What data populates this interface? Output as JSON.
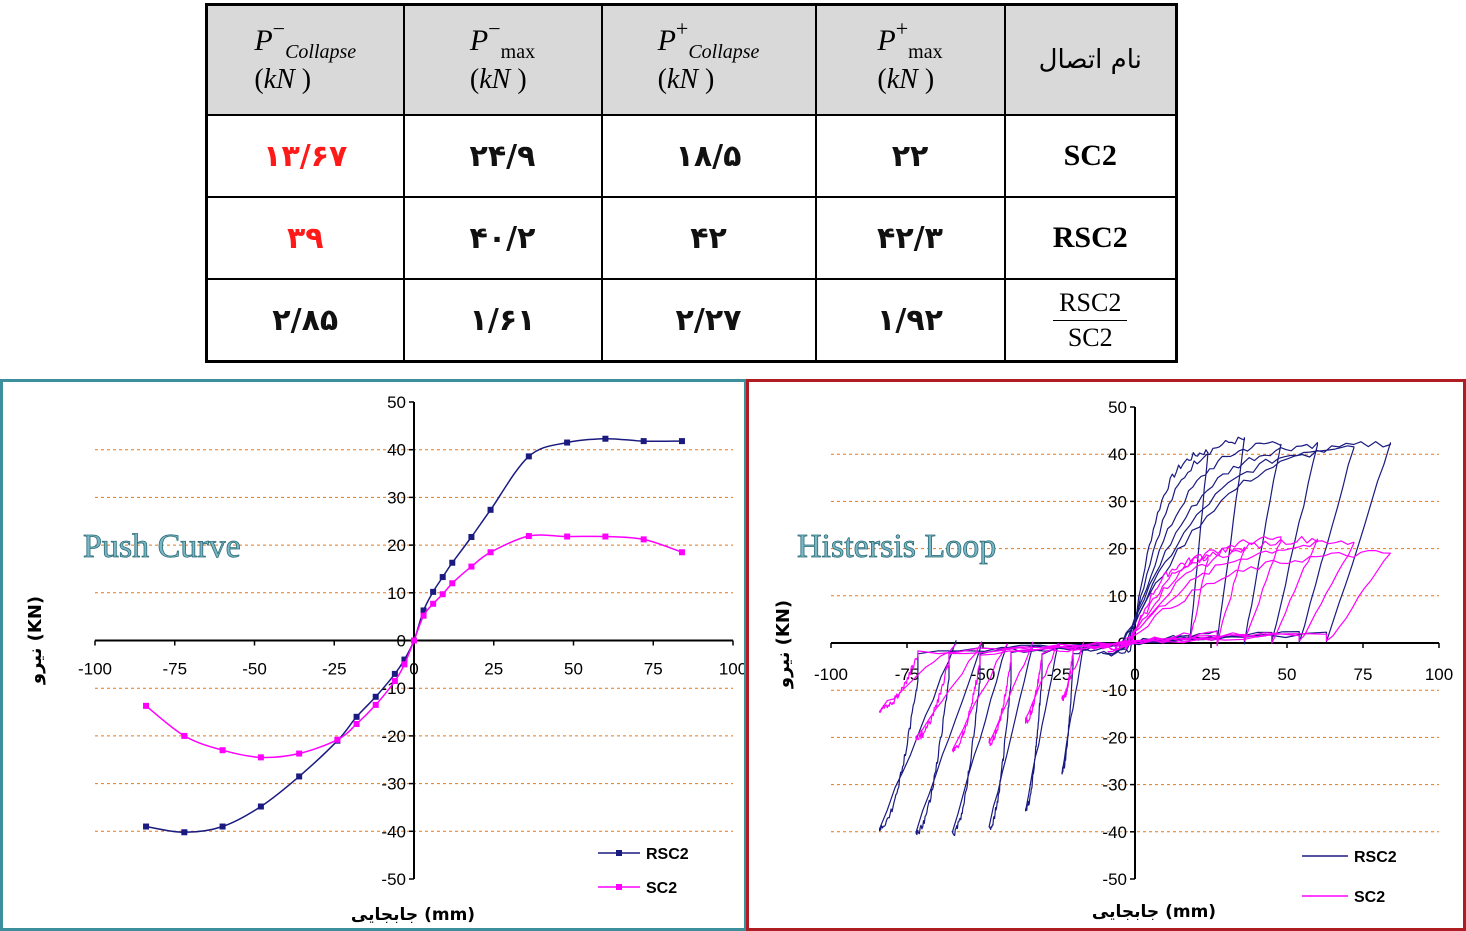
{
  "table": {
    "headers": [
      {
        "sym": "P",
        "sup": "−",
        "sub": "Collapse",
        "sub_italic": true,
        "unit_open": "(",
        "unit": "kN",
        "unit_close": " )"
      },
      {
        "sym": "P",
        "sup": "−",
        "sub": "max",
        "sub_italic": false,
        "unit_open": "(",
        "unit": "kN",
        "unit_close": " )"
      },
      {
        "sym": "P",
        "sup": "+",
        "sub": "Collapse",
        "sub_italic": true,
        "unit_open": "(",
        "unit": "kN",
        "unit_close": " )"
      },
      {
        "sym": "P",
        "sup": "+",
        "sub": "max",
        "sub_italic": false,
        "unit_open": "(",
        "unit": "kN",
        "unit_close": " )"
      }
    ],
    "name_header": "نام اتصال",
    "rows": [
      {
        "values": [
          "۱۳/۶۷",
          "۲۴/۹",
          "۱۸/۵",
          "۲۲"
        ],
        "name": "SC2"
      },
      {
        "values": [
          "۳۹",
          "۴۰/۲",
          "۴۲",
          "۴۲/۳"
        ],
        "name": "RSC2"
      },
      {
        "values": [
          "۲/۸۵",
          "۱/۶۱",
          "۲/۲۷",
          "۱/۹۲"
        ],
        "name_num": "RSC2",
        "name_den": "SC2"
      }
    ],
    "red_color": "#ff1a1a"
  },
  "chart_data": [
    {
      "type": "line",
      "title": "Push Curve",
      "xlabel": "جابجایی (mm)",
      "ylabel": "نیرو (KN)",
      "xlim": [
        -100,
        100
      ],
      "ylim": [
        -50,
        50
      ],
      "xticks": [
        -100,
        -75,
        -50,
        -25,
        0,
        25,
        50,
        75,
        100
      ],
      "yticks": [
        50,
        40,
        30,
        20,
        10,
        0,
        -10,
        -20,
        -30,
        -40,
        -50
      ],
      "legend_position": "bottom-right",
      "grid": "horizontal dashed",
      "series": [
        {
          "name": "RSC2",
          "color": "#1a1a80",
          "x": [
            -84,
            -72,
            -60,
            -48,
            -36,
            -24,
            -18,
            -12,
            -6,
            -3,
            0,
            3,
            6,
            9,
            12,
            18,
            24,
            36,
            48,
            60,
            72,
            84
          ],
          "y": [
            -39,
            -40.2,
            -39,
            -34.8,
            -28.5,
            -21,
            -16,
            -11.8,
            -7,
            -4,
            0,
            6.3,
            10.2,
            13.3,
            16.3,
            21.7,
            27.4,
            38.6,
            41.5,
            42.3,
            41.8,
            41.8
          ]
        },
        {
          "name": "SC2",
          "color": "#ff00ff",
          "x": [
            -84,
            -72,
            -60,
            -48,
            -36,
            -24,
            -18,
            -12,
            -6,
            -3,
            0,
            3,
            6,
            9,
            12,
            18,
            24,
            36,
            48,
            60,
            72,
            84
          ],
          "y": [
            -13.7,
            -20,
            -23,
            -24.5,
            -23.7,
            -20.8,
            -17.5,
            -13.5,
            -8.5,
            -5,
            0,
            5.2,
            7.7,
            9.7,
            12,
            15.5,
            18.5,
            21.9,
            21.8,
            21.8,
            21.2,
            18.5
          ]
        }
      ]
    },
    {
      "type": "line",
      "title": "Histersis Loop",
      "xlabel": "جابجایی (mm)",
      "ylabel": "نیرو (KN)",
      "xlim": [
        -100,
        100
      ],
      "ylim": [
        -50,
        50
      ],
      "xticks": [
        -100,
        -75,
        -50,
        -25,
        0,
        25,
        50,
        75,
        100
      ],
      "yticks": [
        50,
        40,
        30,
        20,
        10,
        0,
        -10,
        -20,
        -30,
        -40,
        -50
      ],
      "legend_position": "bottom-right",
      "grid": "horizontal dashed",
      "series": [
        {
          "name": "RSC2",
          "color": "#1a1a80",
          "amplitudes": [
            24,
            36,
            48,
            60,
            72,
            84
          ],
          "peaks_pos": [
            40.5,
            43,
            42.5,
            42,
            41.8,
            42.3
          ],
          "peaks_neg": [
            -27,
            -35,
            -39,
            -40.2,
            -40,
            -39
          ]
        },
        {
          "name": "SC2",
          "color": "#ff00ff",
          "amplitudes": [
            24,
            36,
            48,
            60,
            72,
            84
          ],
          "peaks_pos": [
            18,
            20,
            22,
            22,
            21.2,
            19
          ],
          "peaks_neg": [
            -12,
            -16.5,
            -21,
            -22.5,
            -20,
            -14
          ]
        }
      ]
    }
  ]
}
